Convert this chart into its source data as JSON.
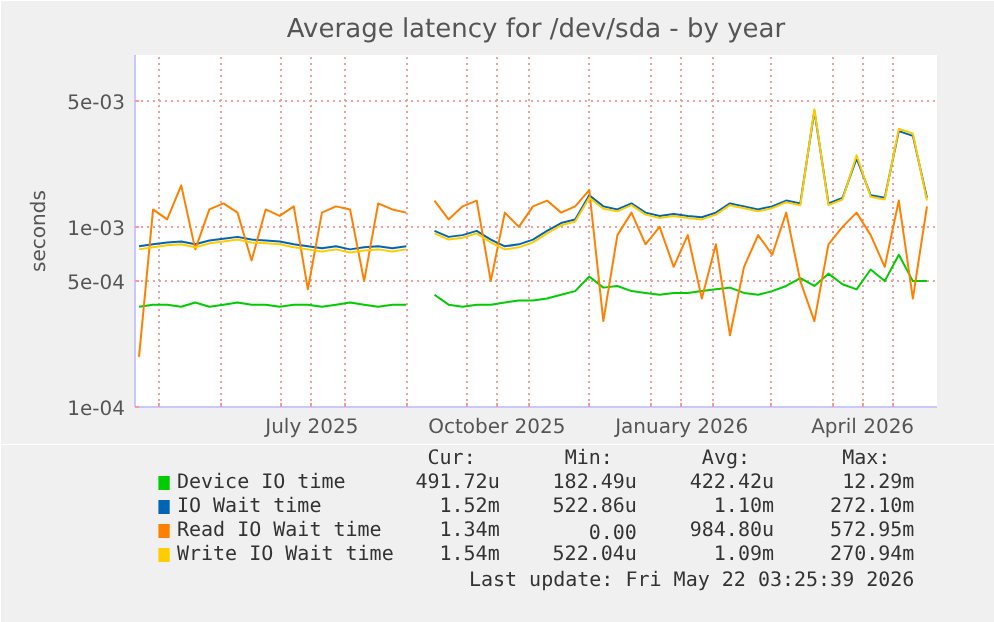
{
  "chart_data": {
    "type": "line",
    "title": "Average latency for /dev/sda - by year",
    "ylabel": "seconds",
    "log": "y",
    "grid": true,
    "legend": "bottom",
    "marker": "none",
    "line_style": "solid",
    "xlim": [
      "2025-04-19",
      "2026-05-23"
    ],
    "xticks": [
      {
        "value": "2025-05-01",
        "label": null
      },
      {
        "value": "2025-06-01",
        "label": null
      },
      {
        "value": "2025-07-01",
        "label": null
      },
      {
        "value": "2025-07-16",
        "label": "July 2025"
      },
      {
        "value": "2025-08-01",
        "label": null
      },
      {
        "value": "2025-09-01",
        "label": null
      },
      {
        "value": "2025-10-01",
        "label": null
      },
      {
        "value": "2025-10-16",
        "label": "October 2025"
      },
      {
        "value": "2025-11-01",
        "label": null
      },
      {
        "value": "2025-12-01",
        "label": null
      },
      {
        "value": "2026-01-01",
        "label": null
      },
      {
        "value": "2026-01-16",
        "label": "January 2026"
      },
      {
        "value": "2026-02-01",
        "label": null
      },
      {
        "value": "2026-03-01",
        "label": null
      },
      {
        "value": "2026-04-01",
        "label": null
      },
      {
        "value": "2026-04-16",
        "label": "April 2026"
      },
      {
        "value": "2026-05-01",
        "label": null
      }
    ],
    "ylim": [
      0.0001,
      0.009
    ],
    "yticks": [
      {
        "value": 0.0001,
        "label": "1e-04"
      },
      {
        "value": 0.0005,
        "label": "5e-04"
      },
      {
        "value": 0.001,
        "label": "1e-03"
      },
      {
        "value": 0.005,
        "label": "5e-03"
      }
    ],
    "x": [
      "2025-04-21",
      "2025-04-28",
      "2025-05-05",
      "2025-05-12",
      "2025-05-19",
      "2025-05-26",
      "2025-06-02",
      "2025-06-09",
      "2025-06-16",
      "2025-06-23",
      "2025-06-30",
      "2025-07-07",
      "2025-07-14",
      "2025-07-21",
      "2025-07-28",
      "2025-08-04",
      "2025-08-11",
      "2025-08-18",
      "2025-08-25",
      "2025-09-01",
      "2025-09-08",
      "2025-09-15",
      "2025-09-22",
      "2025-09-29",
      "2025-10-06",
      "2025-10-13",
      "2025-10-20",
      "2025-10-27",
      "2025-11-03",
      "2025-11-10",
      "2025-11-17",
      "2025-11-24",
      "2025-12-01",
      "2025-12-08",
      "2025-12-15",
      "2025-12-22",
      "2025-12-29",
      "2026-01-05",
      "2026-01-12",
      "2026-01-19",
      "2026-01-26",
      "2026-02-02",
      "2026-02-09",
      "2026-02-16",
      "2026-02-23",
      "2026-03-02",
      "2026-03-09",
      "2026-03-16",
      "2026-03-23",
      "2026-03-30",
      "2026-04-06",
      "2026-04-13",
      "2026-04-20",
      "2026-04-27",
      "2026-05-04",
      "2026-05-11",
      "2026-05-18"
    ],
    "series": [
      {
        "name": "Device IO time",
        "color": "#00cc00",
        "values": [
          0.00036,
          0.00037,
          0.00037,
          0.00036,
          0.00038,
          0.00036,
          0.00037,
          0.00038,
          0.00037,
          0.00037,
          0.00036,
          0.00037,
          0.00037,
          0.00036,
          0.00037,
          0.00038,
          0.00037,
          0.00036,
          0.00037,
          0.00037,
          null,
          0.00042,
          0.00037,
          0.00036,
          0.00037,
          0.00037,
          0.00038,
          0.00039,
          0.00039,
          0.0004,
          0.00042,
          0.00044,
          0.00053,
          0.00046,
          0.00047,
          0.00044,
          0.00043,
          0.00042,
          0.00043,
          0.00043,
          0.00044,
          0.00045,
          0.00046,
          0.00043,
          0.00042,
          0.00044,
          0.00047,
          0.00052,
          0.00047,
          0.00055,
          0.00048,
          0.00045,
          0.00058,
          0.0005,
          0.0007,
          0.0005,
          0.0005
        ]
      },
      {
        "name": "IO Wait time",
        "color": "#0066b3",
        "values": [
          0.00078,
          0.0008,
          0.00082,
          0.00083,
          0.0008,
          0.00084,
          0.00086,
          0.00088,
          0.00085,
          0.00084,
          0.00083,
          0.0008,
          0.00078,
          0.00076,
          0.00078,
          0.00075,
          0.00077,
          0.00078,
          0.00076,
          0.00078,
          null,
          0.00095,
          0.00088,
          0.0009,
          0.00095,
          0.00085,
          0.00078,
          0.0008,
          0.00085,
          0.00095,
          0.00105,
          0.0011,
          0.0015,
          0.0013,
          0.00125,
          0.00135,
          0.0012,
          0.00115,
          0.00118,
          0.00115,
          0.00113,
          0.0012,
          0.00135,
          0.0013,
          0.00125,
          0.0013,
          0.0014,
          0.00135,
          0.0044,
          0.00135,
          0.00145,
          0.0024,
          0.0015,
          0.00145,
          0.0034,
          0.0032,
          0.00145
        ]
      },
      {
        "name": "Read IO Wait time",
        "color": "#ff8000",
        "values": [
          0.00019,
          0.00125,
          0.0011,
          0.0017,
          0.00075,
          0.00125,
          0.00135,
          0.0012,
          0.00065,
          0.00125,
          0.00115,
          0.0013,
          0.00045,
          0.0012,
          0.0013,
          0.00125,
          0.0005,
          0.00135,
          0.00125,
          0.0012,
          null,
          0.0014,
          0.0011,
          0.0013,
          0.0014,
          0.0005,
          0.0012,
          0.001,
          0.0013,
          0.0014,
          0.0012,
          0.0013,
          0.0016,
          0.0003,
          0.0009,
          0.0012,
          0.0008,
          0.001,
          0.0006,
          0.0009,
          0.0004,
          0.0008,
          0.00025,
          0.0006,
          0.0009,
          0.0007,
          0.0012,
          0.0005,
          0.0003,
          0.0008,
          0.001,
          0.0012,
          0.0009,
          0.0006,
          0.0014,
          0.0004,
          0.0013
        ]
      },
      {
        "name": "Write IO Wait time",
        "color": "#ffcc00",
        "values": [
          0.00075,
          0.00077,
          0.00079,
          0.0008,
          0.00077,
          0.00081,
          0.00083,
          0.00085,
          0.00082,
          0.00081,
          0.0008,
          0.00077,
          0.00075,
          0.00073,
          0.00075,
          0.00072,
          0.00074,
          0.00075,
          0.00073,
          0.00075,
          null,
          0.00092,
          0.00085,
          0.00087,
          0.00092,
          0.00082,
          0.00075,
          0.00077,
          0.00082,
          0.00092,
          0.00102,
          0.00107,
          0.00145,
          0.00126,
          0.00122,
          0.00132,
          0.00117,
          0.00112,
          0.00115,
          0.00112,
          0.0011,
          0.00117,
          0.00132,
          0.00127,
          0.00122,
          0.00127,
          0.00137,
          0.00132,
          0.0045,
          0.00132,
          0.00142,
          0.0025,
          0.00147,
          0.00142,
          0.0035,
          0.0033,
          0.0014
        ]
      }
    ],
    "annotations": [
      "Cur:",
      "Min:",
      "Avg:",
      "Max:",
      "491.72u",
      "182.49u",
      "422.42u",
      "12.29m",
      "1.52m",
      "522.86u",
      "1.10m",
      "272.10m",
      "1.34m",
      "0.00",
      "984.80u",
      "572.95m",
      "1.54m",
      "522.04u",
      "1.09m",
      "270.94m",
      "Last update: Fri May 22 03:25:39 2026"
    ]
  }
}
